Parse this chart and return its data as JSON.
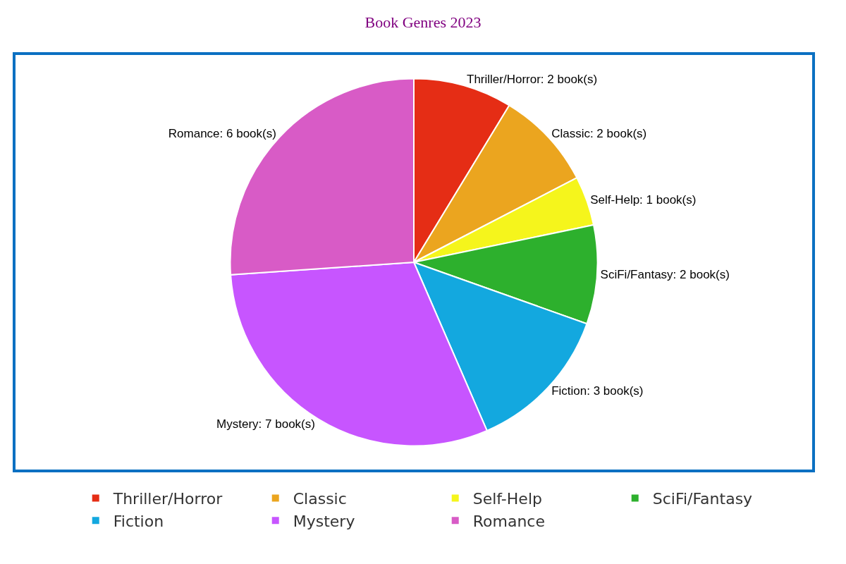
{
  "chart_data": {
    "type": "pie",
    "title": "Book Genres 2023",
    "categories": [
      "Thriller/Horror",
      "Classic",
      "Self-Help",
      "SciFi/Fantasy",
      "Fiction",
      "Mystery",
      "Romance"
    ],
    "values": [
      2,
      2,
      1,
      2,
      3,
      7,
      6
    ],
    "colors": [
      "#e52d15",
      "#eba51f",
      "#f5f51c",
      "#2db02d",
      "#13a8df",
      "#c755ff",
      "#d85bc6"
    ],
    "value_labels": [
      "Thriller/Horror: 2 book(s)",
      "Classic: 2 book(s)",
      "Self-Help: 1 book(s)",
      "SciFi/Fantasy: 2 book(s)",
      "Fiction: 3 book(s)",
      "Mystery: 7 book(s)",
      "Romance: 6 book(s)"
    ],
    "legend": "bottom"
  }
}
